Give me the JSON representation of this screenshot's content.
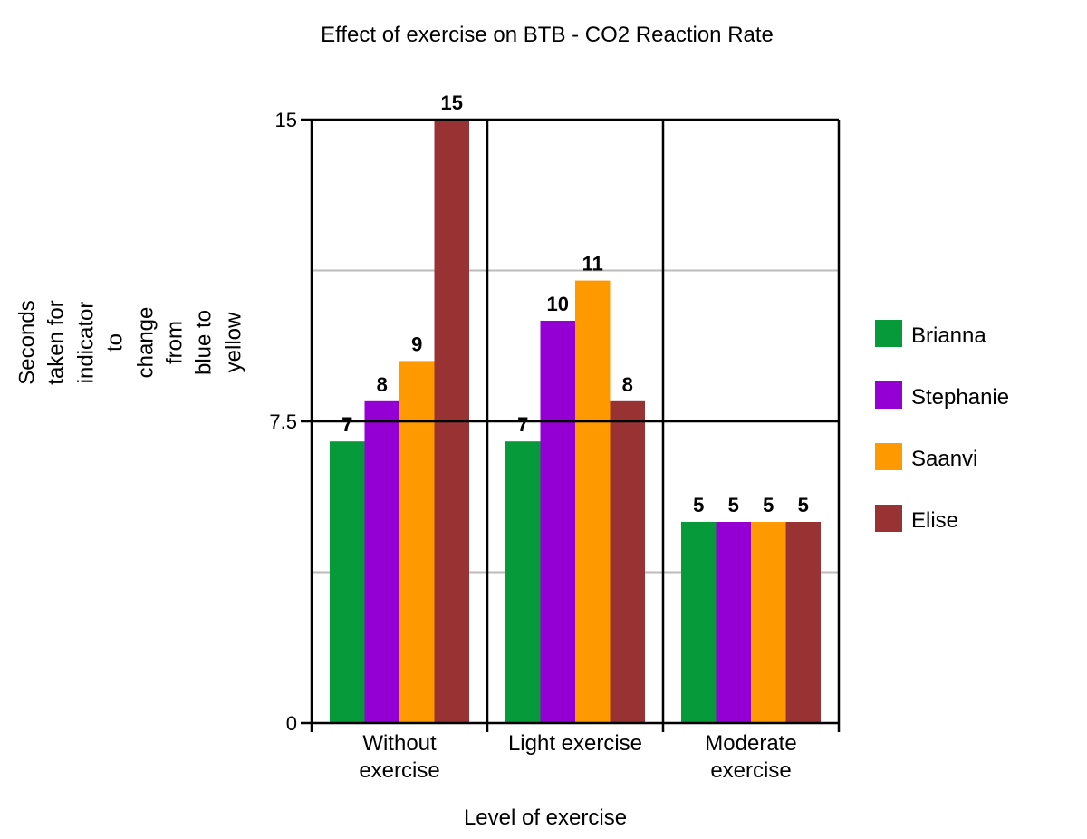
{
  "chart_data": {
    "type": "bar",
    "title": "Effect of exercise on BTB - CO2 Reaction Rate",
    "xlabel": "Level of exercise",
    "ylabel_lines": [
      "Seconds",
      "taken for",
      "indicator",
      "to",
      "change",
      "from",
      "blue to",
      "yellow"
    ],
    "ylim": [
      0,
      15
    ],
    "yticks": [
      "0",
      "7.5",
      "15"
    ],
    "grid": true,
    "legend_position": "right",
    "categories": [
      [
        "Without",
        "exercise"
      ],
      [
        "Light exercise"
      ],
      [
        "Moderate",
        "exercise"
      ]
    ],
    "series": [
      {
        "name": "Brianna",
        "color": "#079a3b",
        "values": [
          7,
          7,
          5
        ]
      },
      {
        "name": "Stephanie",
        "color": "#9400d3",
        "values": [
          8,
          10,
          5
        ]
      },
      {
        "name": "Saanvi",
        "color": "#ff9900",
        "values": [
          9,
          11,
          5
        ]
      },
      {
        "name": "Elise",
        "color": "#993333",
        "values": [
          15,
          8,
          5
        ]
      }
    ]
  }
}
